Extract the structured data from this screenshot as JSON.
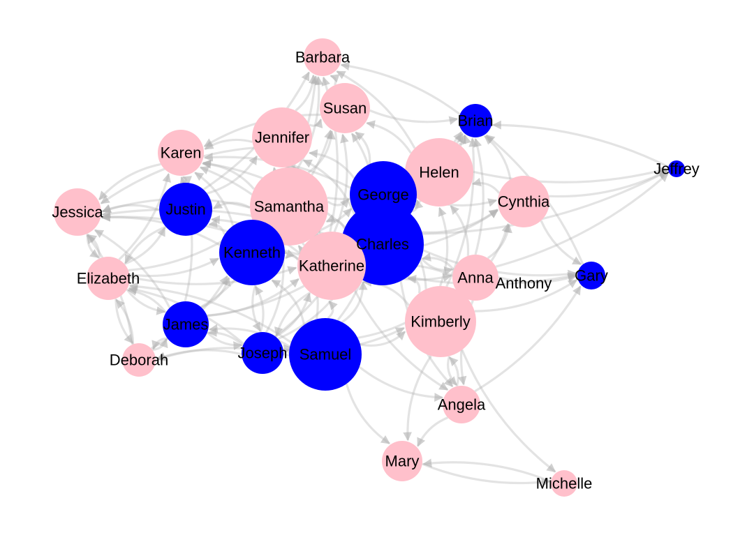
{
  "colors": {
    "female": "#ffc0cb",
    "male": "#0000ff",
    "edge": "#b0b0b0"
  },
  "nodes": [
    {
      "id": "Barbara",
      "label": "Barbara",
      "group": "female"
    },
    {
      "id": "Susan",
      "label": "Susan",
      "group": "female"
    },
    {
      "id": "Brian",
      "label": "Brian",
      "group": "male"
    },
    {
      "id": "Jennifer",
      "label": "Jennifer",
      "group": "female"
    },
    {
      "id": "Karen",
      "label": "Karen",
      "group": "female"
    },
    {
      "id": "Helen",
      "label": "Helen",
      "group": "female"
    },
    {
      "id": "Jeffrey",
      "label": "Jeffrey",
      "group": "male"
    },
    {
      "id": "George",
      "label": "George",
      "group": "male"
    },
    {
      "id": "Jessica",
      "label": "Jessica",
      "group": "female"
    },
    {
      "id": "Justin",
      "label": "Justin",
      "group": "male"
    },
    {
      "id": "Samantha",
      "label": "Samantha",
      "group": "female"
    },
    {
      "id": "Cynthia",
      "label": "Cynthia",
      "group": "female"
    },
    {
      "id": "Charles",
      "label": "Charles",
      "group": "male"
    },
    {
      "id": "Kenneth",
      "label": "Kenneth",
      "group": "male"
    },
    {
      "id": "Katherine",
      "label": "Katherine",
      "group": "female"
    },
    {
      "id": "Elizabeth",
      "label": "Elizabeth",
      "group": "female"
    },
    {
      "id": "Anna",
      "label": "Anna",
      "group": "female"
    },
    {
      "id": "Anthony",
      "label": "Anthony",
      "group": "male"
    },
    {
      "id": "Gary",
      "label": "Gary",
      "group": "male"
    },
    {
      "id": "Kimberly",
      "label": "Kimberly",
      "group": "female"
    },
    {
      "id": "James",
      "label": "James",
      "group": "male"
    },
    {
      "id": "Deborah",
      "label": "Deborah",
      "group": "female"
    },
    {
      "id": "Joseph",
      "label": "Joseph",
      "group": "male"
    },
    {
      "id": "Samuel",
      "label": "Samuel",
      "group": "male"
    },
    {
      "id": "Angela",
      "label": "Angela",
      "group": "female"
    },
    {
      "id": "Mary",
      "label": "Mary",
      "group": "female"
    },
    {
      "id": "Michelle",
      "label": "Michelle",
      "group": "female"
    }
  ],
  "edges": [
    [
      "Jennifer",
      "Barbara"
    ],
    [
      "Susan",
      "Barbara"
    ],
    [
      "Samantha",
      "Barbara"
    ],
    [
      "Justin",
      "Barbara"
    ],
    [
      "Helen",
      "Barbara"
    ],
    [
      "Brian",
      "Barbara"
    ],
    [
      "Katherine",
      "Barbara"
    ],
    [
      "Kenneth",
      "Barbara"
    ],
    [
      "Jennifer",
      "Susan"
    ],
    [
      "George",
      "Susan"
    ],
    [
      "Charles",
      "Susan"
    ],
    [
      "Samantha",
      "Susan"
    ],
    [
      "Kenneth",
      "Susan"
    ],
    [
      "Katherine",
      "Susan"
    ],
    [
      "Helen",
      "Susan"
    ],
    [
      "Susan",
      "Brian"
    ],
    [
      "Helen",
      "Brian"
    ],
    [
      "George",
      "Brian"
    ],
    [
      "Charles",
      "Brian"
    ],
    [
      "Cynthia",
      "Brian"
    ],
    [
      "Anna",
      "Brian"
    ],
    [
      "Kimberly",
      "Brian"
    ],
    [
      "Jeffrey",
      "Brian"
    ],
    [
      "Gary",
      "Brian"
    ],
    [
      "Katherine",
      "Brian"
    ],
    [
      "Samantha",
      "Jennifer"
    ],
    [
      "George",
      "Jennifer"
    ],
    [
      "Charles",
      "Jennifer"
    ],
    [
      "Kenneth",
      "Jennifer"
    ],
    [
      "Katherine",
      "Jennifer"
    ],
    [
      "Justin",
      "Jennifer"
    ],
    [
      "Jennifer",
      "Karen"
    ],
    [
      "Samantha",
      "Karen"
    ],
    [
      "Justin",
      "Karen"
    ],
    [
      "Kenneth",
      "Karen"
    ],
    [
      "Katherine",
      "Karen"
    ],
    [
      "George",
      "Karen"
    ],
    [
      "Charles",
      "Karen"
    ],
    [
      "Susan",
      "Karen"
    ],
    [
      "Elizabeth",
      "Karen"
    ],
    [
      "James",
      "Karen"
    ],
    [
      "George",
      "Helen"
    ],
    [
      "Charles",
      "Helen"
    ],
    [
      "Samantha",
      "Helen"
    ],
    [
      "Katherine",
      "Helen"
    ],
    [
      "Anna",
      "Helen"
    ],
    [
      "Kimberly",
      "Helen"
    ],
    [
      "Cynthia",
      "Helen"
    ],
    [
      "Cynthia",
      "Jeffrey"
    ],
    [
      "Helen",
      "Jeffrey"
    ],
    [
      "Anna",
      "Jeffrey"
    ],
    [
      "Charles",
      "Jeffrey"
    ],
    [
      "Samantha",
      "George"
    ],
    [
      "Katherine",
      "George"
    ],
    [
      "Kenneth",
      "George"
    ],
    [
      "Samuel",
      "George"
    ],
    [
      "Joseph",
      "George"
    ],
    [
      "Kimberly",
      "George"
    ],
    [
      "Karen",
      "Jessica"
    ],
    [
      "Justin",
      "Jessica"
    ],
    [
      "Samantha",
      "Jessica"
    ],
    [
      "Kenneth",
      "Jessica"
    ],
    [
      "Elizabeth",
      "Jessica"
    ],
    [
      "Jennifer",
      "Jessica"
    ],
    [
      "Charles",
      "Jessica"
    ],
    [
      "Katherine",
      "Jessica"
    ],
    [
      "James",
      "Jessica"
    ],
    [
      "Deborah",
      "Jessica"
    ],
    [
      "Samantha",
      "Justin"
    ],
    [
      "Kenneth",
      "Justin"
    ],
    [
      "Katherine",
      "Justin"
    ],
    [
      "Elizabeth",
      "Justin"
    ],
    [
      "Charles",
      "Samantha"
    ],
    [
      "Kenneth",
      "Samantha"
    ],
    [
      "Katherine",
      "Samantha"
    ],
    [
      "Samuel",
      "Samantha"
    ],
    [
      "Joseph",
      "Samantha"
    ],
    [
      "James",
      "Samantha"
    ],
    [
      "Elizabeth",
      "Samantha"
    ],
    [
      "Charles",
      "Cynthia"
    ],
    [
      "Anna",
      "Cynthia"
    ],
    [
      "Kimberly",
      "Cynthia"
    ],
    [
      "George",
      "Cynthia"
    ],
    [
      "Katherine",
      "Cynthia"
    ],
    [
      "Katherine",
      "Charles"
    ],
    [
      "Kenneth",
      "Charles"
    ],
    [
      "Samuel",
      "Charles"
    ],
    [
      "Joseph",
      "Charles"
    ],
    [
      "Kimberly",
      "Charles"
    ],
    [
      "Anna",
      "Charles"
    ],
    [
      "James",
      "Charles"
    ],
    [
      "Katherine",
      "Kenneth"
    ],
    [
      "James",
      "Kenneth"
    ],
    [
      "Joseph",
      "Kenneth"
    ],
    [
      "Samuel",
      "Kenneth"
    ],
    [
      "Elizabeth",
      "Kenneth"
    ],
    [
      "Deborah",
      "Kenneth"
    ],
    [
      "Samuel",
      "Katherine"
    ],
    [
      "Joseph",
      "Katherine"
    ],
    [
      "James",
      "Katherine"
    ],
    [
      "Kimberly",
      "Katherine"
    ],
    [
      "Anna",
      "Katherine"
    ],
    [
      "Elizabeth",
      "Katherine"
    ],
    [
      "James",
      "Elizabeth"
    ],
    [
      "Deborah",
      "Elizabeth"
    ],
    [
      "Joseph",
      "Elizabeth"
    ],
    [
      "Samuel",
      "Elizabeth"
    ],
    [
      "Jessica",
      "Elizabeth"
    ],
    [
      "Justin",
      "Elizabeth"
    ],
    [
      "Kimberly",
      "Anna"
    ],
    [
      "Charles",
      "Anna"
    ],
    [
      "Samuel",
      "Anna"
    ],
    [
      "Katherine",
      "Anna"
    ],
    [
      "Anna",
      "Gary"
    ],
    [
      "Charles",
      "Gary"
    ],
    [
      "Kimberly",
      "Gary"
    ],
    [
      "Cynthia",
      "Gary"
    ],
    [
      "Angela",
      "Gary"
    ],
    [
      "Katherine",
      "Gary"
    ],
    [
      "Samuel",
      "Kimberly"
    ],
    [
      "Joseph",
      "Kimberly"
    ],
    [
      "Angela",
      "Kimberly"
    ],
    [
      "Deborah",
      "James"
    ],
    [
      "Joseph",
      "James"
    ],
    [
      "Samuel",
      "James"
    ],
    [
      "Elizabeth",
      "James"
    ],
    [
      "James",
      "Deborah"
    ],
    [
      "Joseph",
      "Deborah"
    ],
    [
      "Samuel",
      "Deborah"
    ],
    [
      "Elizabeth",
      "Deborah"
    ],
    [
      "Samuel",
      "Joseph"
    ],
    [
      "James",
      "Joseph"
    ],
    [
      "Katherine",
      "Joseph"
    ],
    [
      "Kenneth",
      "Joseph"
    ],
    [
      "Kimberly",
      "Angela"
    ],
    [
      "Charles",
      "Angela"
    ],
    [
      "Samuel",
      "Angela"
    ],
    [
      "Katherine",
      "Angela"
    ],
    [
      "Anna",
      "Angela"
    ],
    [
      "Samuel",
      "Mary"
    ],
    [
      "Angela",
      "Mary"
    ],
    [
      "Michelle",
      "Mary"
    ],
    [
      "Kimberly",
      "Mary"
    ],
    [
      "Mary",
      "Michelle"
    ],
    [
      "Kimberly",
      "Michelle"
    ]
  ]
}
